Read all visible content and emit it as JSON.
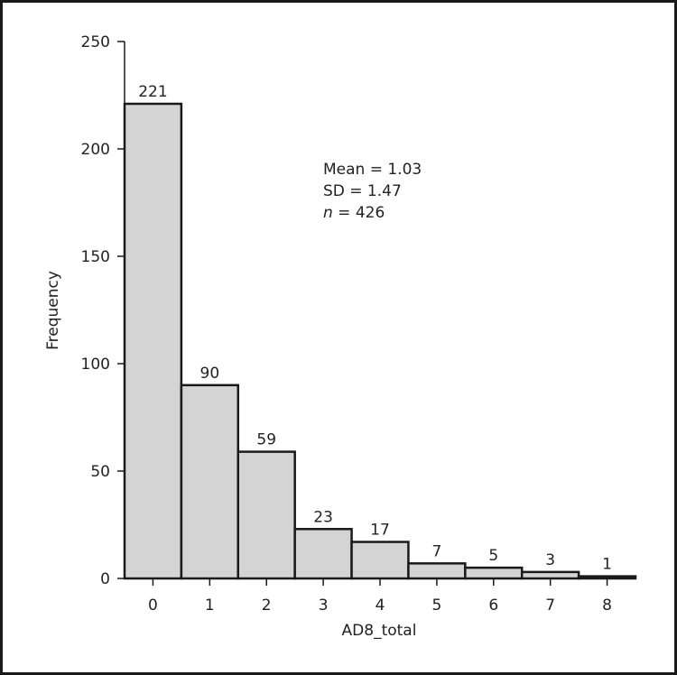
{
  "chart_data": {
    "type": "bar",
    "title": "",
    "xlabel": "AD8_total",
    "ylabel": "Frequency",
    "categories": [
      "0",
      "1",
      "2",
      "3",
      "4",
      "5",
      "6",
      "7",
      "8"
    ],
    "values": [
      221,
      90,
      59,
      23,
      17,
      7,
      5,
      3,
      1
    ],
    "ylim": [
      0,
      250
    ],
    "yticks": [
      "0",
      "50",
      "100",
      "150",
      "200",
      "250"
    ],
    "grid": false,
    "bar_color": "#d4d4d4",
    "annotation": {
      "mean": "Mean = 1.03",
      "sd": "SD = 1.47",
      "n_label": "n",
      "n_value": " = 426"
    }
  }
}
